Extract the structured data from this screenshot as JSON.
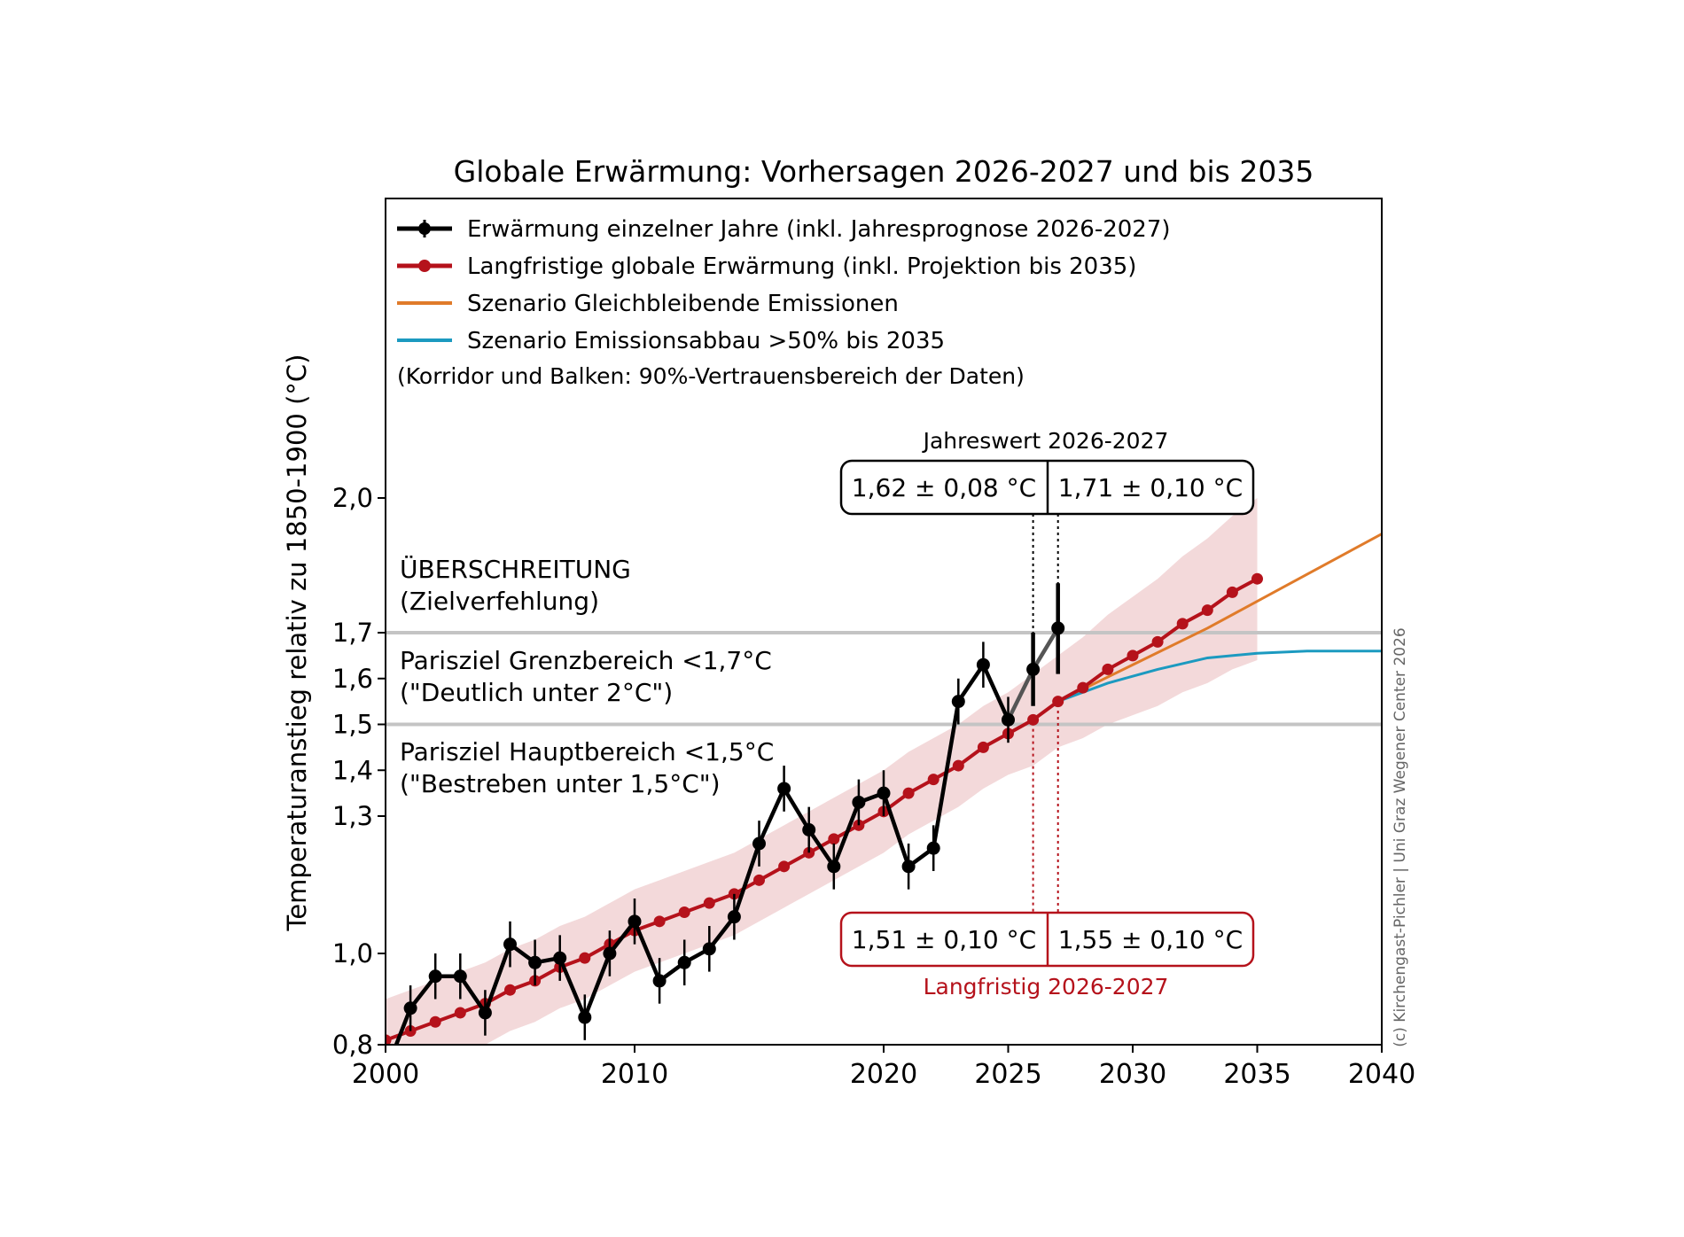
{
  "chart_data": {
    "type": "line",
    "title": "Globale Erwärmung: Vorhersagen 2026-2027 und bis 2035",
    "xlabel": "",
    "ylabel": "Temperaturanstieg relativ zu 1850-1900 (°C)",
    "xlim": [
      2000,
      2040
    ],
    "ylim": [
      0.8,
      2.12
    ],
    "x_ticks": [
      2000,
      2010,
      2020,
      2025,
      2030,
      2035,
      2040
    ],
    "y_ticks": [
      0.8,
      1.0,
      1.3,
      1.4,
      1.5,
      1.6,
      1.7,
      2.0
    ],
    "y_tick_labels": [
      "0,8",
      "1,0",
      "1,3",
      "1,4",
      "1,5",
      "1,6",
      "1,7",
      "2,0"
    ],
    "reference_lines": [
      1.5,
      1.7
    ],
    "legend": {
      "placement": "top-left",
      "entries": [
        "Erwärmung einzelner Jahre (inkl. Jahresprognose 2026-2027)",
        "Langfristige globale Erwärmung (inkl. Projektion bis 2035)",
        "Szenario Gleichbleibende Emissionen",
        "Szenario Emissionsabbau >50% bis 2035"
      ],
      "note": "(Korridor und Balken: 90%-Vertrauensbereich der Daten)"
    },
    "zones": {
      "exceed_title": "ÜBERSCHREITUNG",
      "exceed_sub": "(Zielverfehlung)",
      "limit_title": "Parisziel Grenzbereich <1,7°C",
      "limit_sub": "(\"Deutlich unter 2°C\")",
      "main_title": "Parisziel Hauptbereich <1,5°C",
      "main_sub": "(\"Bestreben unter 1,5°C\")"
    },
    "annual_box": {
      "title": "Jahreswert 2026-2027",
      "left": "1,62 ± 0,08 °C",
      "right": "1,71 ± 0,10 °C"
    },
    "longterm_box": {
      "title": "Langfristig 2026-2027",
      "left": "1,51 ± 0,10 °C",
      "right": "1,55 ± 0,10 °C"
    },
    "copyright": "(c) Kirchengast-Pichler | Uni Graz Wegener Center 2026",
    "series": [
      {
        "name": "Erwärmung einzelner Jahre (inkl. Jahresprognose 2026-2027)",
        "color": "#000000",
        "x": [
          2000,
          2001,
          2002,
          2003,
          2004,
          2005,
          2006,
          2007,
          2008,
          2009,
          2010,
          2011,
          2012,
          2013,
          2014,
          2015,
          2016,
          2017,
          2018,
          2019,
          2020,
          2021,
          2022,
          2023,
          2024,
          2025,
          2026,
          2027
        ],
        "y": [
          0.74,
          0.88,
          0.95,
          0.95,
          0.87,
          1.02,
          0.98,
          0.99,
          0.86,
          1.0,
          1.07,
          0.94,
          0.98,
          1.01,
          1.08,
          1.24,
          1.36,
          1.27,
          1.19,
          1.33,
          1.35,
          1.19,
          1.23,
          1.55,
          1.63,
          1.51,
          1.62,
          1.71
        ],
        "err": [
          0.05,
          0.05,
          0.05,
          0.05,
          0.05,
          0.05,
          0.05,
          0.05,
          0.05,
          0.05,
          0.05,
          0.05,
          0.05,
          0.05,
          0.05,
          0.05,
          0.05,
          0.05,
          0.05,
          0.05,
          0.05,
          0.05,
          0.05,
          0.05,
          0.05,
          0.05,
          0.08,
          0.1
        ]
      },
      {
        "name": "Langfristige globale Erwärmung (inkl. Projektion bis 2035)",
        "color": "#b5121b",
        "x": [
          2000,
          2001,
          2002,
          2003,
          2004,
          2005,
          2006,
          2007,
          2008,
          2009,
          2010,
          2011,
          2012,
          2013,
          2014,
          2015,
          2016,
          2017,
          2018,
          2019,
          2020,
          2021,
          2022,
          2023,
          2024,
          2025,
          2026,
          2027,
          2028,
          2029,
          2030,
          2031,
          2032,
          2033,
          2034,
          2035
        ],
        "y": [
          0.81,
          0.83,
          0.85,
          0.87,
          0.89,
          0.92,
          0.94,
          0.97,
          0.99,
          1.02,
          1.05,
          1.07,
          1.09,
          1.11,
          1.13,
          1.16,
          1.19,
          1.22,
          1.25,
          1.28,
          1.31,
          1.35,
          1.38,
          1.41,
          1.45,
          1.48,
          1.51,
          1.55,
          1.58,
          1.62,
          1.65,
          1.68,
          1.72,
          1.75,
          1.79,
          1.82
        ],
        "band": [
          0.09,
          0.09,
          0.09,
          0.09,
          0.09,
          0.09,
          0.09,
          0.09,
          0.09,
          0.09,
          0.09,
          0.09,
          0.09,
          0.09,
          0.09,
          0.09,
          0.09,
          0.09,
          0.09,
          0.09,
          0.09,
          0.09,
          0.09,
          0.09,
          0.09,
          0.09,
          0.1,
          0.1,
          0.11,
          0.12,
          0.13,
          0.14,
          0.15,
          0.16,
          0.17,
          0.18
        ]
      },
      {
        "name": "Szenario Gleichbleibende Emissionen",
        "color": "#e07b2a",
        "x": [
          2027,
          2030,
          2033,
          2036,
          2040
        ],
        "y": [
          1.55,
          1.63,
          1.71,
          1.8,
          1.92
        ]
      },
      {
        "name": "Szenario Emissionsabbau >50% bis 2035",
        "color": "#1c9ac0",
        "x": [
          2027,
          2029,
          2031,
          2033,
          2035,
          2037,
          2040
        ],
        "y": [
          1.55,
          1.59,
          1.62,
          1.645,
          1.655,
          1.66,
          1.66
        ]
      }
    ]
  }
}
